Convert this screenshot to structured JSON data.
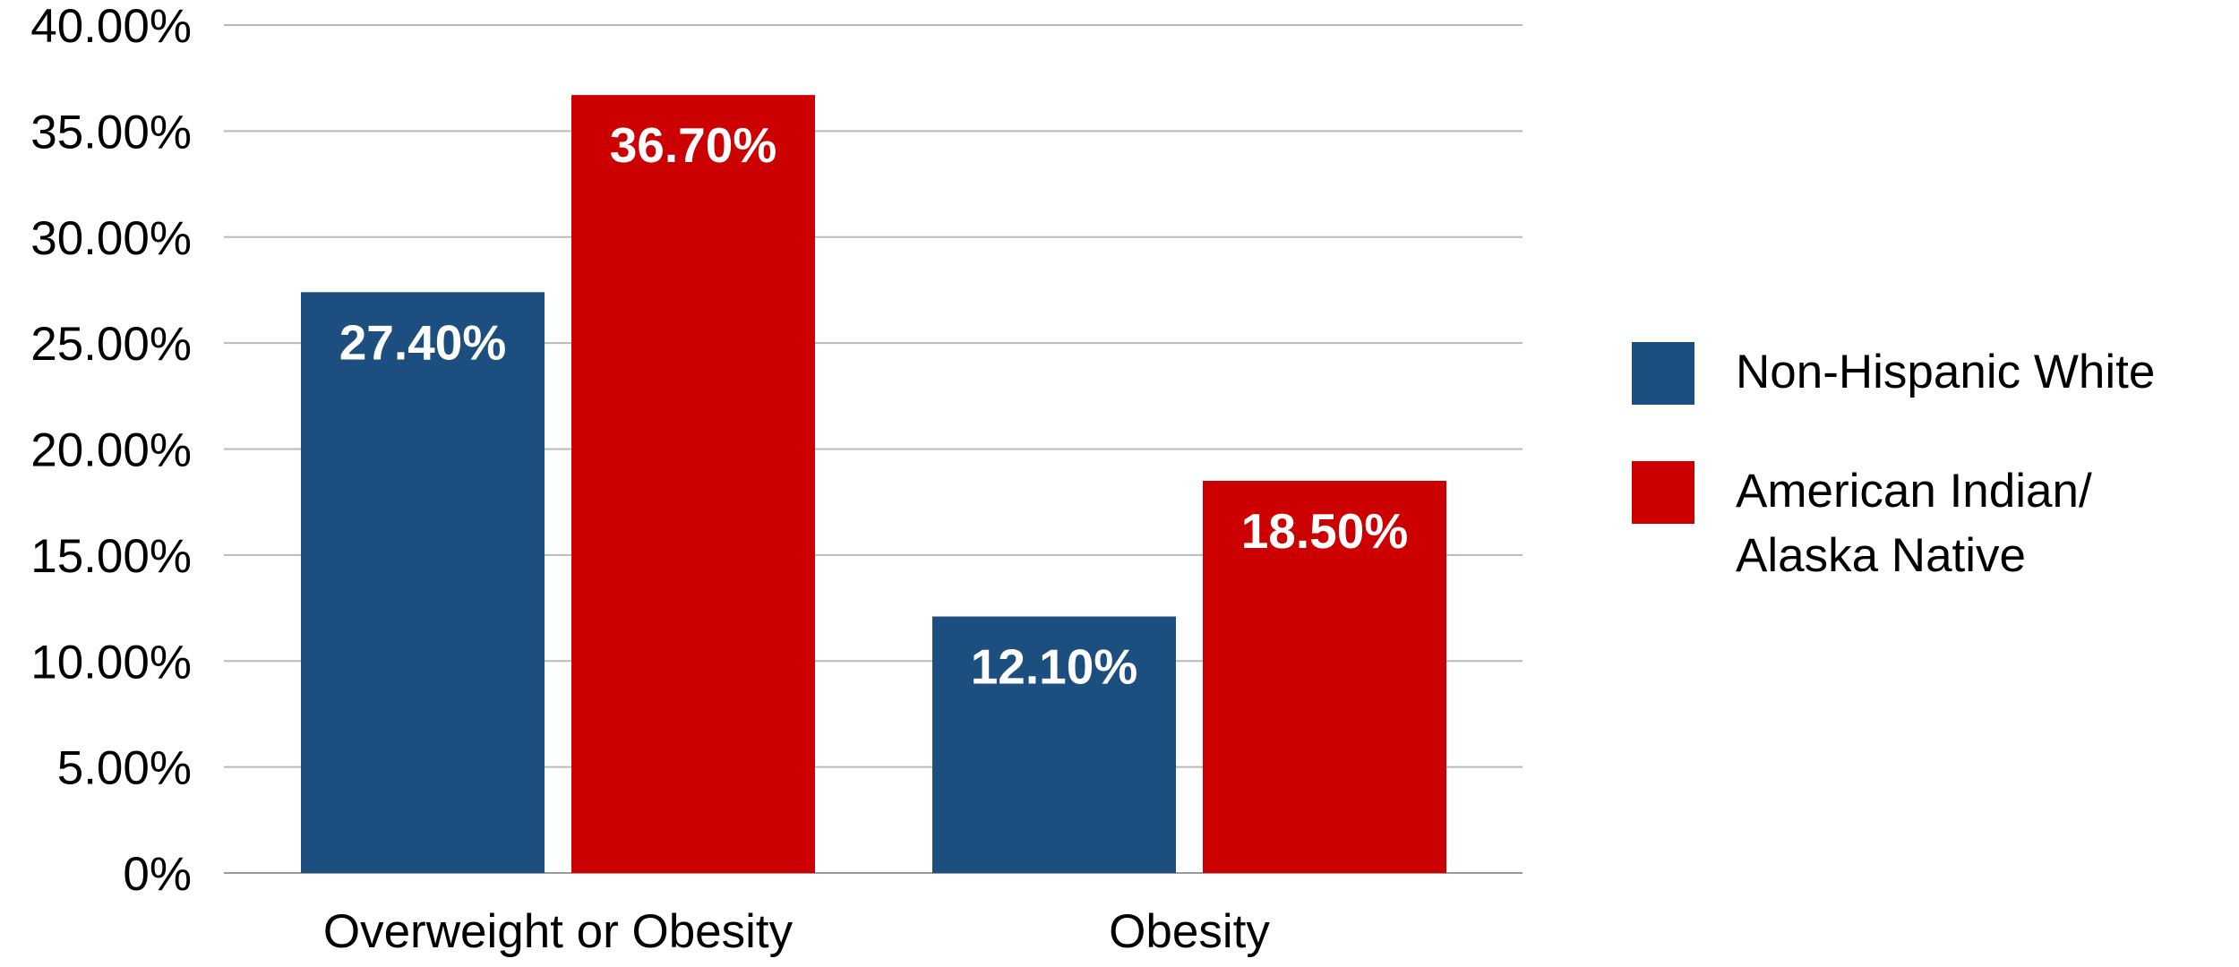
{
  "chart_data": {
    "type": "bar",
    "title": "",
    "xlabel": "",
    "ylabel": "",
    "categories": [
      "Overweight or Obesity",
      "Obesity"
    ],
    "series": [
      {
        "name": "Non-Hispanic White",
        "color": "#1C4F80",
        "values": [
          27.4,
          12.1
        ],
        "labels": [
          "27.40%",
          "12.10%"
        ]
      },
      {
        "name": "American Indian/ Alaska Native",
        "name_lines": [
          "American Indian/",
          "Alaska Native"
        ],
        "color": "#CC0000",
        "values": [
          36.7,
          18.5
        ],
        "labels": [
          "36.70%",
          "18.50%"
        ]
      }
    ],
    "ylim": [
      0,
      40
    ],
    "yticks": [
      0,
      5,
      10,
      15,
      20,
      25,
      30,
      35,
      40
    ],
    "ytick_labels": [
      "0%",
      "5.00%",
      "10.00%",
      "15.00%",
      "20.00%",
      "25.00%",
      "30.00%",
      "35.00%",
      "40.00%"
    ],
    "grid": true,
    "legend_position": "right"
  }
}
